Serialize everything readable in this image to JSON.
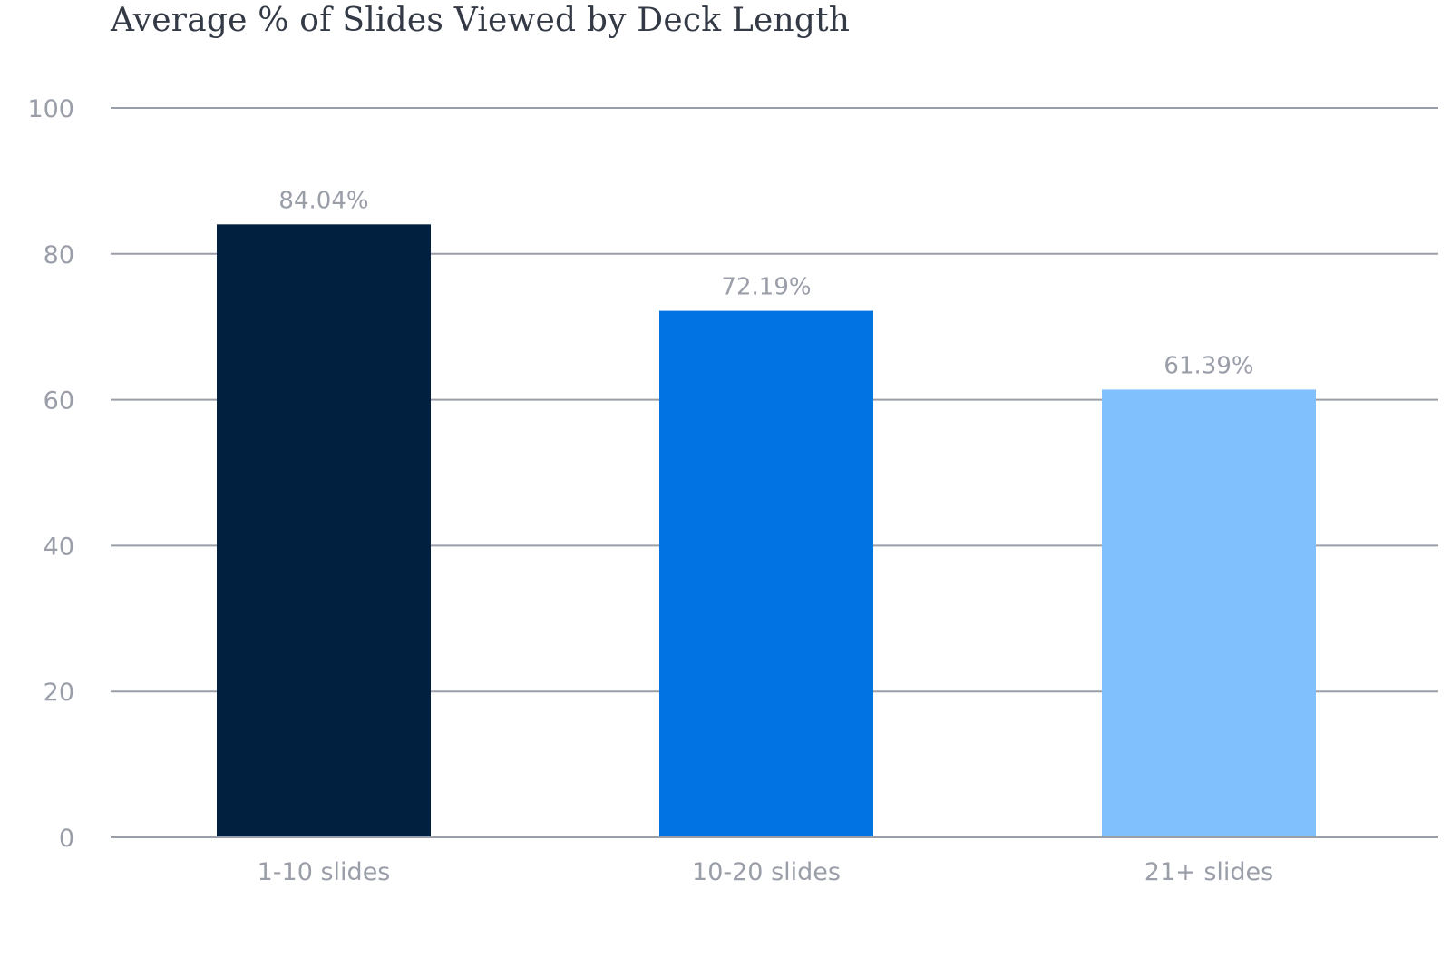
{
  "chart_data": {
    "type": "bar",
    "title": "Average % of Slides Viewed by Deck Length",
    "xlabel": "",
    "ylabel": "",
    "ylim": [
      0,
      100
    ],
    "yticks": [
      "0",
      "20",
      "40",
      "60",
      "80",
      "100"
    ],
    "grid": true,
    "categories": [
      "1-10 slides",
      "10-20 slides",
      "21+ slides"
    ],
    "values": [
      84.04,
      72.19,
      61.39
    ],
    "data_labels": [
      "84.04%",
      "72.19%",
      "61.39%"
    ],
    "colors": [
      "#011f3f",
      "#0273e3",
      "#80c0fd"
    ]
  }
}
